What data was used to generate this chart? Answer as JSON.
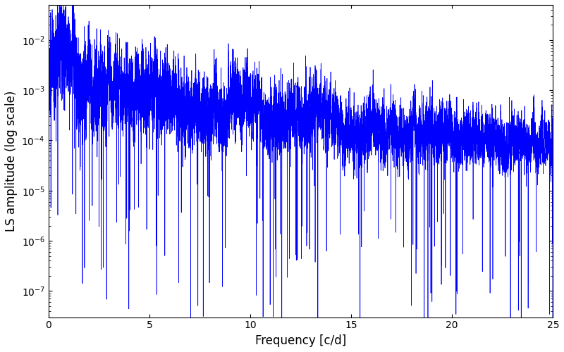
{
  "title": "",
  "xlabel": "Frequency [c/d]",
  "ylabel": "LS amplitude (log scale)",
  "line_color": "#0000ff",
  "line_width": 0.5,
  "xlim": [
    0,
    25
  ],
  "ylim": [
    3e-08,
    0.05
  ],
  "yticks": [
    1e-07,
    1e-06,
    1e-05,
    0.0001,
    0.001,
    0.01
  ],
  "xticks": [
    0,
    5,
    10,
    15,
    20,
    25
  ],
  "figsize": [
    8.0,
    5.0
  ],
  "dpi": 100,
  "background_color": "#ffffff",
  "n_points": 12000,
  "seed": 7
}
